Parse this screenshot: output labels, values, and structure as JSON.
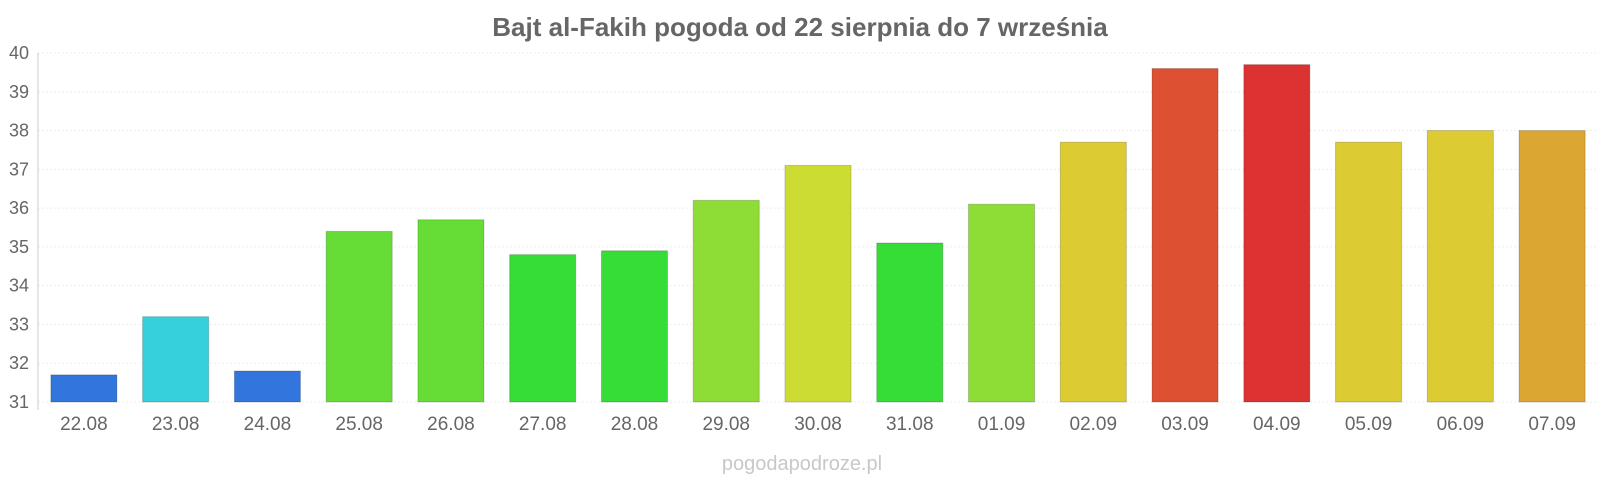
{
  "chart_data": {
    "type": "bar",
    "title": "Bajt al-Fakih pogoda od 22 sierpnia do 7 września",
    "xlabel": "",
    "ylabel": "",
    "ylim": [
      31,
      40
    ],
    "yticks": [
      31,
      32,
      33,
      34,
      35,
      36,
      37,
      38,
      39,
      40
    ],
    "grid": true,
    "categories": [
      "22.08",
      "23.08",
      "24.08",
      "25.08",
      "26.08",
      "27.08",
      "28.08",
      "29.08",
      "30.08",
      "31.08",
      "01.09",
      "02.09",
      "03.09",
      "04.09",
      "05.09",
      "06.09",
      "07.09"
    ],
    "values": [
      31.7,
      33.2,
      31.8,
      35.4,
      35.7,
      34.8,
      34.9,
      36.2,
      37.1,
      35.1,
      36.1,
      37.7,
      39.6,
      39.7,
      37.7,
      38.0,
      38.0
    ],
    "colors": [
      "#3276dd",
      "#36cfdc",
      "#3276dd",
      "#66dd36",
      "#66dd36",
      "#36dd36",
      "#36dd36",
      "#8ddd36",
      "#ccdc32",
      "#36dd36",
      "#8ddd36",
      "#dccb32",
      "#dd5032",
      "#dd3232",
      "#dccb32",
      "#dccb32",
      "#dca632"
    ]
  },
  "watermark": "pogodapodroze.pl"
}
